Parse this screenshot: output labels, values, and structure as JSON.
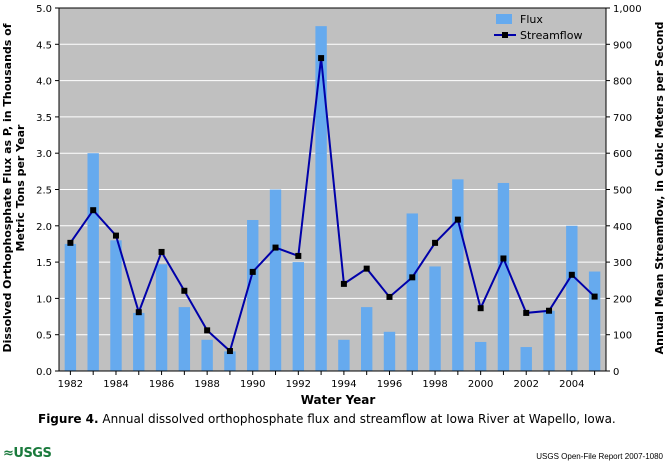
{
  "chart_data": {
    "type": "bar+line",
    "categories": [
      "1982",
      "1983",
      "1984",
      "1985",
      "1986",
      "1987",
      "1988",
      "1989",
      "1990",
      "1991",
      "1992",
      "1993",
      "1994",
      "1995",
      "1996",
      "1997",
      "1998",
      "1999",
      "2000",
      "2001",
      "2002",
      "2003",
      "2004",
      "2005"
    ],
    "x_tick_labels": [
      "1982",
      "1984",
      "1986",
      "1988",
      "1990",
      "1992",
      "1994",
      "1996",
      "1998",
      "2000",
      "2002",
      "2004"
    ],
    "series": [
      {
        "name": "Flux",
        "type": "bar",
        "axis": "left",
        "color": "#66aaee",
        "values": [
          1.75,
          3.0,
          1.8,
          0.8,
          1.47,
          0.88,
          0.43,
          0.27,
          2.08,
          2.5,
          1.5,
          4.75,
          0.43,
          0.88,
          0.54,
          2.17,
          1.44,
          2.64,
          0.4,
          2.59,
          0.33,
          0.83,
          2.0,
          1.37
        ]
      },
      {
        "name": "Streamflow",
        "type": "line",
        "axis": "right",
        "color": "#0000aa",
        "values": [
          353,
          443,
          373,
          162,
          328,
          221,
          112,
          55,
          273,
          340,
          317,
          862,
          240,
          282,
          204,
          258,
          353,
          417,
          173,
          310,
          160,
          166,
          265,
          205
        ]
      }
    ],
    "ylim_left": [
      0,
      5
    ],
    "yticks_left": [
      "0.0",
      "0.5",
      "1.0",
      "1.5",
      "2.0",
      "2.5",
      "3.0",
      "3.5",
      "4.0",
      "4.5",
      "5.0"
    ],
    "ylim_right": [
      0,
      1000
    ],
    "yticks_right": [
      "0",
      "100",
      "200",
      "300",
      "400",
      "500",
      "600",
      "700",
      "800",
      "900",
      "1,000"
    ],
    "xlabel": "Water Year",
    "ylabel_left_line1": "Dissolved Orthophosphate Flux as P, in Thousands of",
    "ylabel_left_line2": "Metric Tons per Year",
    "ylabel_right": "Annual Mean Streamflow, in Cubic Meters per Second",
    "legend_position": "top-right",
    "plot_background": "#c0c0c0",
    "grid_color": "#ffffff"
  },
  "caption": {
    "label": "Figure 4.",
    "text": "Annual dissolved orthophosphate flux and streamflow at Iowa River at Wapello, Iowa."
  },
  "footer": {
    "logo_text": "≈USGS",
    "report": "USGS Open-File Report 2007-1080"
  }
}
